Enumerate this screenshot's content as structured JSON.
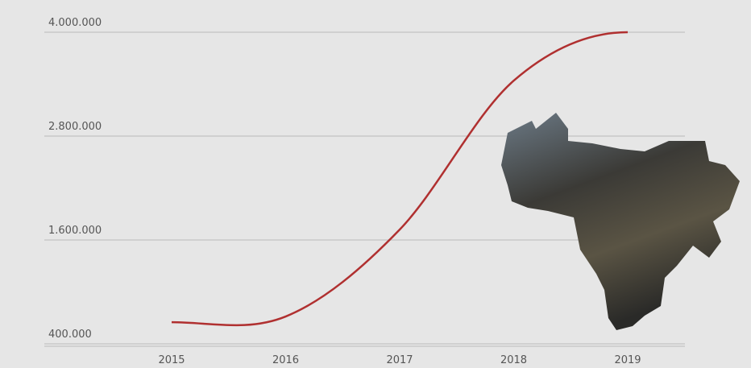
{
  "chart_data": {
    "type": "line",
    "x": [
      2015,
      2016,
      2017,
      2018,
      2019
    ],
    "series": [
      {
        "color": "#b03030",
        "values": [
          650000,
          716000,
          1720000,
          3440000,
          4000000
        ]
      }
    ],
    "xlim": [
      2015,
      2019
    ],
    "xticks": [
      2015,
      2016,
      2017,
      2018,
      2019
    ],
    "ylim": [
      400000,
      4000000
    ],
    "yticks": [
      {
        "value": 400000,
        "label": "400.000"
      },
      {
        "value": 1600000,
        "label": "1.600.000"
      },
      {
        "value": 2800000,
        "label": "2.800.000"
      },
      {
        "value": 4000000,
        "label": "4.000.000"
      }
    ],
    "grid": true
  }
}
